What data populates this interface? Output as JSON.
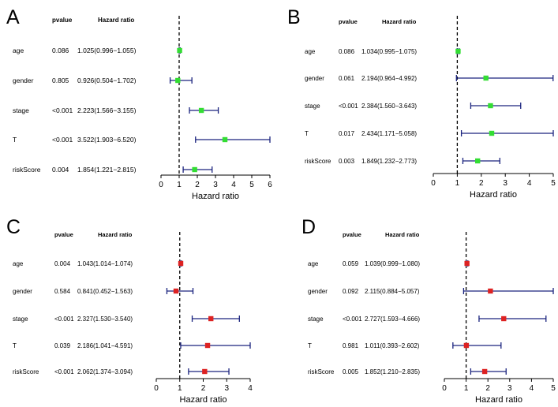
{
  "chart_data": [
    {
      "type": "forest",
      "panel_label": "A",
      "columns": {
        "pvalue": "pvalue",
        "hr": "Hazard ratio"
      },
      "xlabel": "Hazard ratio",
      "xlim": [
        0,
        6
      ],
      "xticks": [
        "0",
        "1",
        "2",
        "3",
        "4",
        "5",
        "6"
      ],
      "reference_line": 1,
      "marker_color": "#33dd33",
      "rows": [
        {
          "variable": "age",
          "pvalue": "0.086",
          "hr_text": "1.025(0.996−1.055)",
          "hr": 1.025,
          "lower": 0.996,
          "upper": 1.055
        },
        {
          "variable": "gender",
          "pvalue": "0.805",
          "hr_text": "0.926(0.504−1.702)",
          "hr": 0.926,
          "lower": 0.504,
          "upper": 1.702
        },
        {
          "variable": "stage",
          "pvalue": "<0.001",
          "hr_text": "2.223(1.566−3.155)",
          "hr": 2.223,
          "lower": 1.566,
          "upper": 3.155
        },
        {
          "variable": "T",
          "pvalue": "<0.001",
          "hr_text": "3.522(1.903−6.520)",
          "hr": 3.522,
          "lower": 1.903,
          "upper": 6.52
        },
        {
          "variable": "riskScore",
          "pvalue": "0.004",
          "hr_text": "1.854(1.221−2.815)",
          "hr": 1.854,
          "lower": 1.221,
          "upper": 2.815
        }
      ]
    },
    {
      "type": "forest",
      "panel_label": "B",
      "columns": {
        "pvalue": "pvalue",
        "hr": "Hazard ratio"
      },
      "xlabel": "Hazard ratio",
      "xlim": [
        0,
        5
      ],
      "xticks": [
        "0",
        "1",
        "2",
        "3",
        "4",
        "5"
      ],
      "reference_line": 1,
      "marker_color": "#33dd33",
      "rows": [
        {
          "variable": "age",
          "pvalue": "0.086",
          "hr_text": "1.034(0.995−1.075)",
          "hr": 1.034,
          "lower": 0.995,
          "upper": 1.075
        },
        {
          "variable": "gender",
          "pvalue": "0.061",
          "hr_text": "2.194(0.964−4.992)",
          "hr": 2.194,
          "lower": 0.964,
          "upper": 4.992
        },
        {
          "variable": "stage",
          "pvalue": "<0.001",
          "hr_text": "2.384(1.560−3.643)",
          "hr": 2.384,
          "lower": 1.56,
          "upper": 3.643
        },
        {
          "variable": "T",
          "pvalue": "0.017",
          "hr_text": "2.434(1.171−5.058)",
          "hr": 2.434,
          "lower": 1.171,
          "upper": 5.058
        },
        {
          "variable": "riskScore",
          "pvalue": "0.003",
          "hr_text": "1.849(1.232−2.773)",
          "hr": 1.849,
          "lower": 1.232,
          "upper": 2.773
        }
      ]
    },
    {
      "type": "forest",
      "panel_label": "C",
      "columns": {
        "pvalue": "pvalue",
        "hr": "Hazard ratio"
      },
      "xlabel": "Hazard ratio",
      "xlim": [
        0,
        4
      ],
      "xticks": [
        "0",
        "1",
        "2",
        "3",
        "4"
      ],
      "reference_line": 1,
      "marker_color": "#dd2222",
      "rows": [
        {
          "variable": "age",
          "pvalue": "0.004",
          "hr_text": "1.043(1.014−1.074)",
          "hr": 1.043,
          "lower": 1.014,
          "upper": 1.074
        },
        {
          "variable": "gender",
          "pvalue": "0.584",
          "hr_text": "0.841(0.452−1.563)",
          "hr": 0.841,
          "lower": 0.452,
          "upper": 1.563
        },
        {
          "variable": "stage",
          "pvalue": "<0.001",
          "hr_text": "2.327(1.530−3.540)",
          "hr": 2.327,
          "lower": 1.53,
          "upper": 3.54
        },
        {
          "variable": "T",
          "pvalue": "0.039",
          "hr_text": "2.186(1.041−4.591)",
          "hr": 2.186,
          "lower": 1.041,
          "upper": 4.591
        },
        {
          "variable": "riskScore",
          "pvalue": "<0.001",
          "hr_text": "2.062(1.374−3.094)",
          "hr": 2.062,
          "lower": 1.374,
          "upper": 3.094
        }
      ]
    },
    {
      "type": "forest",
      "panel_label": "D",
      "columns": {
        "pvalue": "pvalue",
        "hr": "Hazard ratio"
      },
      "xlabel": "Hazard ratio",
      "xlim": [
        0,
        5
      ],
      "xticks": [
        "0",
        "1",
        "2",
        "3",
        "4",
        "5"
      ],
      "reference_line": 1,
      "marker_color": "#dd2222",
      "rows": [
        {
          "variable": "age",
          "pvalue": "0.059",
          "hr_text": "1.039(0.999−1.080)",
          "hr": 1.039,
          "lower": 0.999,
          "upper": 1.08
        },
        {
          "variable": "gender",
          "pvalue": "0.092",
          "hr_text": "2.115(0.884−5.057)",
          "hr": 2.115,
          "lower": 0.884,
          "upper": 5.057
        },
        {
          "variable": "stage",
          "pvalue": "<0.001",
          "hr_text": "2.727(1.593−4.666)",
          "hr": 2.727,
          "lower": 1.593,
          "upper": 4.666
        },
        {
          "variable": "T",
          "pvalue": "0.981",
          "hr_text": "1.011(0.393−2.602)",
          "hr": 1.011,
          "lower": 0.393,
          "upper": 2.602
        },
        {
          "variable": "riskScore",
          "pvalue": "0.005",
          "hr_text": "1.852(1.210−2.835)",
          "hr": 1.852,
          "lower": 1.21,
          "upper": 2.835
        }
      ]
    }
  ],
  "colors": {
    "ci_line": "#1a237e",
    "axis": "#000000",
    "reference": "#000000"
  }
}
